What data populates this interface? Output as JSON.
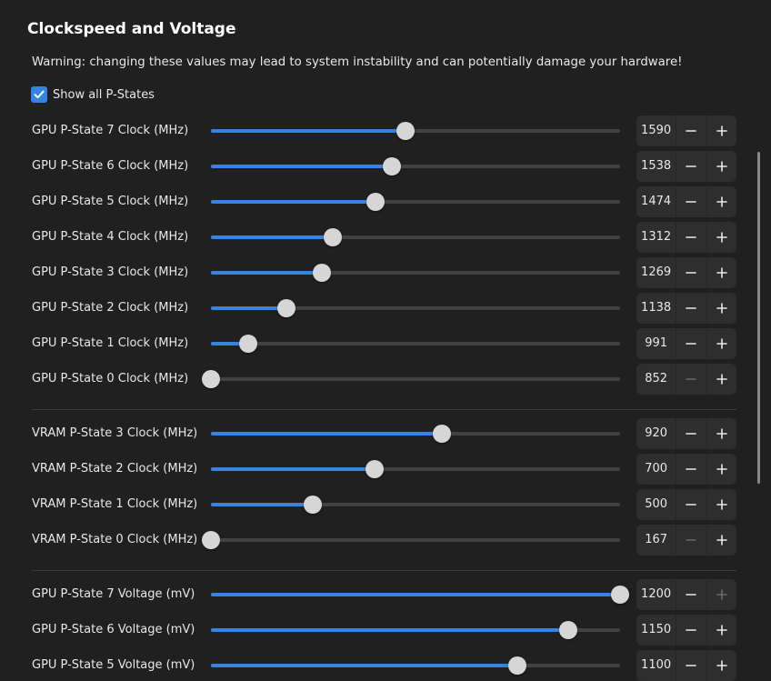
{
  "page": {
    "title": "Clockspeed and Voltage",
    "warning": "Warning: changing these values may lead to system instability and can potentially damage your hardware!",
    "show_all_pstates": {
      "label": "Show all P-States",
      "checked": true
    }
  },
  "colors": {
    "background": "#202020",
    "accent": "#3584e4",
    "track": "#424242",
    "thumb": "#d6d6d6",
    "spin_background": "#2e2e2e",
    "disabled_icon": "#6a6a6a"
  },
  "slider_groups": [
    {
      "name": "gpu-clock",
      "rows": [
        {
          "label": "GPU P-State 7 Clock (MHz)",
          "value": "1590",
          "level": 0.476,
          "minus_enabled": true,
          "plus_enabled": true
        },
        {
          "label": "GPU P-State 6 Clock (MHz)",
          "value": "1538",
          "level": 0.442,
          "minus_enabled": true,
          "plus_enabled": true
        },
        {
          "label": "GPU P-State 5 Clock (MHz)",
          "value": "1474",
          "level": 0.402,
          "minus_enabled": true,
          "plus_enabled": true
        },
        {
          "label": "GPU P-State 4 Clock (MHz)",
          "value": "1312",
          "level": 0.298,
          "minus_enabled": true,
          "plus_enabled": true
        },
        {
          "label": "GPU P-State 3 Clock (MHz)",
          "value": "1269",
          "level": 0.27,
          "minus_enabled": true,
          "plus_enabled": true
        },
        {
          "label": "GPU P-State 2 Clock (MHz)",
          "value": "1138",
          "level": 0.184,
          "minus_enabled": true,
          "plus_enabled": true
        },
        {
          "label": "GPU P-State 1 Clock (MHz)",
          "value": "991",
          "level": 0.09,
          "minus_enabled": true,
          "plus_enabled": true
        },
        {
          "label": "GPU P-State 0 Clock (MHz)",
          "value": "852",
          "level": 0.0,
          "minus_enabled": false,
          "plus_enabled": true
        }
      ]
    },
    {
      "name": "vram-clock",
      "rows": [
        {
          "label": "VRAM P-State 3 Clock (MHz)",
          "value": "920",
          "level": 0.564,
          "minus_enabled": true,
          "plus_enabled": true
        },
        {
          "label": "VRAM P-State 2 Clock (MHz)",
          "value": "700",
          "level": 0.399,
          "minus_enabled": true,
          "plus_enabled": true
        },
        {
          "label": "VRAM P-State 1 Clock (MHz)",
          "value": "500",
          "level": 0.249,
          "minus_enabled": true,
          "plus_enabled": true
        },
        {
          "label": "VRAM P-State 0 Clock (MHz)",
          "value": "167",
          "level": 0.0,
          "minus_enabled": false,
          "plus_enabled": true
        }
      ]
    },
    {
      "name": "gpu-voltage",
      "rows": [
        {
          "label": "GPU P-State 7 Voltage (mV)",
          "value": "1200",
          "level": 1.0,
          "minus_enabled": true,
          "plus_enabled": false
        },
        {
          "label": "GPU P-State 6 Voltage (mV)",
          "value": "1150",
          "level": 0.873,
          "minus_enabled": true,
          "plus_enabled": true
        },
        {
          "label": "GPU P-State 5 Voltage (mV)",
          "value": "1100",
          "level": 0.749,
          "minus_enabled": true,
          "plus_enabled": true
        }
      ]
    }
  ]
}
